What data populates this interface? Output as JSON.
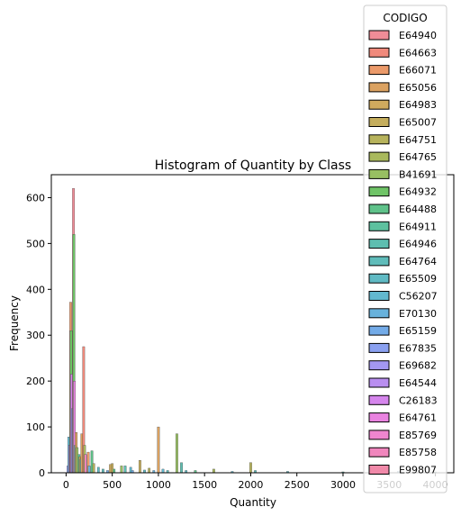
{
  "chart_data": {
    "type": "bar",
    "title": "Histogram of Quantity by Class",
    "xlabel": "Quantity",
    "ylabel": "Frequency",
    "xlim": [
      -160,
      4200
    ],
    "ylim": [
      0,
      650
    ],
    "xticks": [
      0,
      500,
      1000,
      1500,
      2000,
      2500,
      3000,
      3500,
      4000
    ],
    "yticks": [
      0,
      100,
      200,
      300,
      400,
      500,
      600
    ],
    "grid": false,
    "legend": {
      "title": "CODIGO",
      "placement": "top-right",
      "entries": [
        {
          "name": "E64940",
          "color": "#f08c97"
        },
        {
          "name": "E64663",
          "color": "#f08a7c"
        },
        {
          "name": "E66071",
          "color": "#eb9a6a"
        },
        {
          "name": "E65056",
          "color": "#dba261"
        },
        {
          "name": "E64983",
          "color": "#cfaa5e"
        },
        {
          "name": "E65007",
          "color": "#c5ae5d"
        },
        {
          "name": "E64751",
          "color": "#b7b35c"
        },
        {
          "name": "E64765",
          "color": "#a9b95d"
        },
        {
          "name": "B41691",
          "color": "#98bf62"
        },
        {
          "name": "E64932",
          "color": "#6fc467"
        },
        {
          "name": "E64488",
          "color": "#5fc28a"
        },
        {
          "name": "E64911",
          "color": "#5dc19f"
        },
        {
          "name": "E64946",
          "color": "#5ebeb0"
        },
        {
          "name": "E64764",
          "color": "#5fbcba"
        },
        {
          "name": "E65509",
          "color": "#60bac4"
        },
        {
          "name": "C56207",
          "color": "#62b8cf"
        },
        {
          "name": "E70130",
          "color": "#68b2dc"
        },
        {
          "name": "E65159",
          "color": "#73abe8"
        },
        {
          "name": "E67835",
          "color": "#8aa0f0"
        },
        {
          "name": "E69682",
          "color": "#a397f2"
        },
        {
          "name": "E64544",
          "color": "#b98ef0"
        },
        {
          "name": "C26183",
          "color": "#d585ec"
        },
        {
          "name": "E64761",
          "color": "#e983e0"
        },
        {
          "name": "E85769",
          "color": "#ef85cf"
        },
        {
          "name": "E85758",
          "color": "#f086bd"
        },
        {
          "name": "E99807",
          "color": "#f089a9"
        }
      ]
    },
    "bars": [
      {
        "x": 20,
        "height": 15,
        "color": "#a397f2"
      },
      {
        "x": 30,
        "height": 78,
        "color": "#62b8cf"
      },
      {
        "x": 40,
        "height": 60,
        "color": "#b98ef0"
      },
      {
        "x": 50,
        "height": 372,
        "color": "#eb9a6a"
      },
      {
        "x": 55,
        "height": 310,
        "color": "#6fc467"
      },
      {
        "x": 60,
        "height": 215,
        "color": "#d585ec"
      },
      {
        "x": 70,
        "height": 140,
        "color": "#8aa0f0"
      },
      {
        "x": 80,
        "height": 620,
        "color": "#f08c97"
      },
      {
        "x": 85,
        "height": 520,
        "color": "#6fc467"
      },
      {
        "x": 90,
        "height": 200,
        "color": "#e983e0"
      },
      {
        "x": 100,
        "height": 60,
        "color": "#5ebeb0"
      },
      {
        "x": 110,
        "height": 88,
        "color": "#dba261"
      },
      {
        "x": 120,
        "height": 55,
        "color": "#98bf62"
      },
      {
        "x": 140,
        "height": 40,
        "color": "#5dc19f"
      },
      {
        "x": 150,
        "height": 35,
        "color": "#cfaa5e"
      },
      {
        "x": 160,
        "height": 30,
        "color": "#60bac4"
      },
      {
        "x": 170,
        "height": 85,
        "color": "#dba261"
      },
      {
        "x": 190,
        "height": 275,
        "color": "#f08a7c"
      },
      {
        "x": 200,
        "height": 60,
        "color": "#a9b95d"
      },
      {
        "x": 210,
        "height": 40,
        "color": "#f086bd"
      },
      {
        "x": 240,
        "height": 45,
        "color": "#eb9a6a"
      },
      {
        "x": 250,
        "height": 15,
        "color": "#68b2dc"
      },
      {
        "x": 280,
        "height": 48,
        "color": "#5fc28a"
      },
      {
        "x": 300,
        "height": 20,
        "color": "#b7b35c"
      },
      {
        "x": 350,
        "height": 12,
        "color": "#60bac4"
      },
      {
        "x": 400,
        "height": 8,
        "color": "#5fbcba"
      },
      {
        "x": 450,
        "height": 5,
        "color": "#73abe8"
      },
      {
        "x": 480,
        "height": 18,
        "color": "#cfaa5e"
      },
      {
        "x": 500,
        "height": 20,
        "color": "#c5ae5d"
      },
      {
        "x": 520,
        "height": 8,
        "color": "#5fc28a"
      },
      {
        "x": 600,
        "height": 15,
        "color": "#98bf62"
      },
      {
        "x": 640,
        "height": 15,
        "color": "#5ebeb0"
      },
      {
        "x": 700,
        "height": 12,
        "color": "#62b8cf"
      },
      {
        "x": 720,
        "height": 5,
        "color": "#73abe8"
      },
      {
        "x": 800,
        "height": 27,
        "color": "#c5ae5d"
      },
      {
        "x": 850,
        "height": 6,
        "color": "#60bac4"
      },
      {
        "x": 900,
        "height": 10,
        "color": "#b7b35c"
      },
      {
        "x": 950,
        "height": 5,
        "color": "#68b2dc"
      },
      {
        "x": 1000,
        "height": 100,
        "color": "#dba261"
      },
      {
        "x": 1050,
        "height": 8,
        "color": "#62b8cf"
      },
      {
        "x": 1100,
        "height": 5,
        "color": "#5fbcba"
      },
      {
        "x": 1200,
        "height": 85,
        "color": "#98bf62"
      },
      {
        "x": 1250,
        "height": 22,
        "color": "#5ebeb0"
      },
      {
        "x": 1300,
        "height": 5,
        "color": "#60bac4"
      },
      {
        "x": 1400,
        "height": 5,
        "color": "#5fc28a"
      },
      {
        "x": 1600,
        "height": 8,
        "color": "#a9b95d"
      },
      {
        "x": 1800,
        "height": 3,
        "color": "#62b8cf"
      },
      {
        "x": 2000,
        "height": 22,
        "color": "#b7b35c"
      },
      {
        "x": 2050,
        "height": 5,
        "color": "#5fbcba"
      },
      {
        "x": 2400,
        "height": 3,
        "color": "#60bac4"
      },
      {
        "x": 3000,
        "height": 2,
        "color": "#5ebeb0"
      },
      {
        "x": 3600,
        "height": 3,
        "color": "#62b8cf"
      },
      {
        "x": 4000,
        "height": 2,
        "color": "#5fbcba"
      }
    ]
  }
}
